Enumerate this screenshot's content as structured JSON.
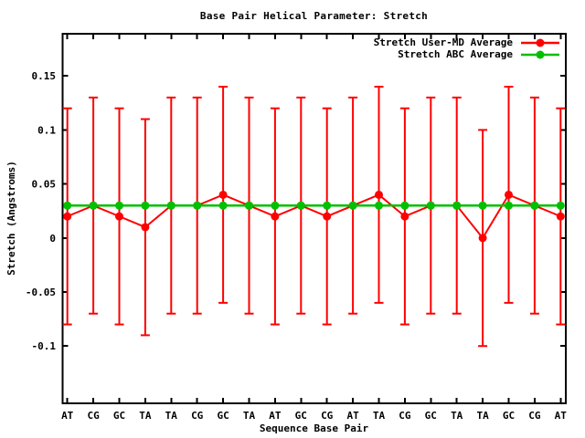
{
  "chart_data": {
    "type": "line",
    "title": "Base Pair Helical Parameter: Stretch",
    "xlabel": "Sequence Base Pair",
    "ylabel": "Stretch (Angstroms)",
    "categories": [
      "AT",
      "CG",
      "GC",
      "TA",
      "TA",
      "CG",
      "GC",
      "TA",
      "AT",
      "GC",
      "CG",
      "AT",
      "TA",
      "CG",
      "GC",
      "TA",
      "TA",
      "GC",
      "CG",
      "AT"
    ],
    "ylim": [
      -0.153,
      0.189
    ],
    "ytick_values": [
      -0.1,
      -0.05,
      0,
      0.05,
      0.1,
      0.15
    ],
    "ytick_labels": [
      "-0.1",
      "-0.05",
      "0",
      "0.05",
      "0.1",
      "0.15"
    ],
    "grid": false,
    "legend_position": "inside-top-right",
    "axis_color": "#000000",
    "background_color": "#ffffff",
    "series": [
      {
        "name": "Stretch User-MD Average",
        "color": "#ff0000",
        "style": "line-points-errorbars",
        "values": [
          0.02,
          0.03,
          0.02,
          0.01,
          0.03,
          0.03,
          0.04,
          0.03,
          0.02,
          0.03,
          0.02,
          0.03,
          0.04,
          0.02,
          0.03,
          0.03,
          0.0,
          0.04,
          0.03,
          0.02
        ],
        "errors": [
          0.1,
          0.1,
          0.1,
          0.1,
          0.1,
          0.1,
          0.1,
          0.1,
          0.1,
          0.1,
          0.1,
          0.1,
          0.1,
          0.1,
          0.1,
          0.1,
          0.1,
          0.1,
          0.1,
          0.1
        ]
      },
      {
        "name": "Stretch ABC Average",
        "color": "#00c000",
        "style": "line-points",
        "values": [
          0.03,
          0.03,
          0.03,
          0.03,
          0.03,
          0.03,
          0.03,
          0.03,
          0.03,
          0.03,
          0.03,
          0.03,
          0.03,
          0.03,
          0.03,
          0.03,
          0.03,
          0.03,
          0.03,
          0.03
        ]
      }
    ]
  }
}
